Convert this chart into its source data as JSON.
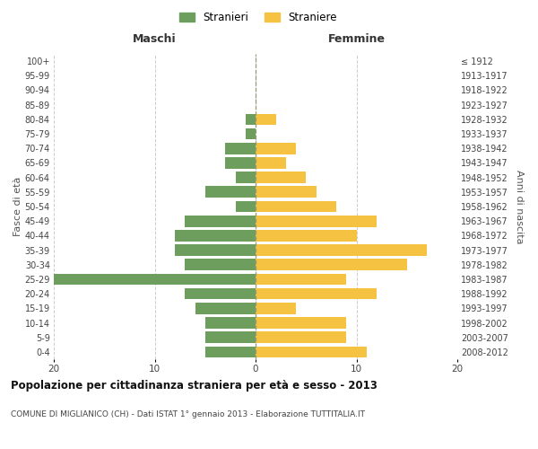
{
  "age_groups": [
    "0-4",
    "5-9",
    "10-14",
    "15-19",
    "20-24",
    "25-29",
    "30-34",
    "35-39",
    "40-44",
    "45-49",
    "50-54",
    "55-59",
    "60-64",
    "65-69",
    "70-74",
    "75-79",
    "80-84",
    "85-89",
    "90-94",
    "95-99",
    "100+"
  ],
  "birth_years": [
    "2008-2012",
    "2003-2007",
    "1998-2002",
    "1993-1997",
    "1988-1992",
    "1983-1987",
    "1978-1982",
    "1973-1977",
    "1968-1972",
    "1963-1967",
    "1958-1962",
    "1953-1957",
    "1948-1952",
    "1943-1947",
    "1938-1942",
    "1933-1937",
    "1928-1932",
    "1923-1927",
    "1918-1922",
    "1913-1917",
    "≤ 1912"
  ],
  "maschi": [
    5,
    5,
    5,
    6,
    7,
    20,
    7,
    8,
    8,
    7,
    2,
    5,
    2,
    3,
    3,
    1,
    1,
    0,
    0,
    0,
    0
  ],
  "femmine": [
    11,
    9,
    9,
    4,
    12,
    9,
    15,
    17,
    10,
    12,
    8,
    6,
    5,
    3,
    4,
    0,
    2,
    0,
    0,
    0,
    0
  ],
  "color_maschi": "#6e9e5e",
  "color_femmine": "#f5c242",
  "title": "Popolazione per cittadinanza straniera per età e sesso - 2013",
  "subtitle": "COMUNE DI MIGLIANICO (CH) - Dati ISTAT 1° gennaio 2013 - Elaborazione TUTTITALIA.IT",
  "xlabel_maschi": "Maschi",
  "xlabel_femmine": "Femmine",
  "ylabel_left": "Fasce di età",
  "ylabel_right": "Anni di nascita",
  "legend_maschi": "Stranieri",
  "legend_femmine": "Straniere",
  "xlim": 20,
  "background_color": "#ffffff",
  "grid_color": "#cccccc"
}
